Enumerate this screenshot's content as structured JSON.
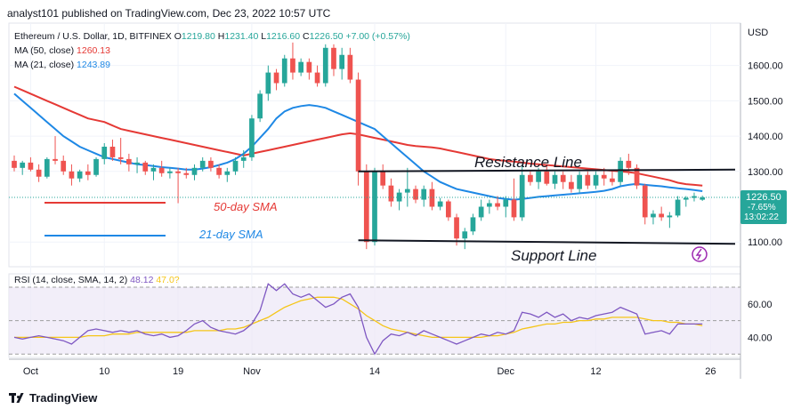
{
  "header": {
    "published_text": "analyst101 published on TradingView.com, Dec 23, 2022 10:57 UTC"
  },
  "legend": {
    "symbol": "Ethereum / U.S. Dollar, 1D, BITFINEX",
    "open_label": "O",
    "open": "1219.80",
    "high_label": "H",
    "high": "1231.40",
    "low_label": "L",
    "low": "1216.60",
    "close_label": "C",
    "close": "1226.50",
    "change": "+7.00 (+0.57%)",
    "ma50_label": "MA (50, close)",
    "ma50_value": "1260.13",
    "ma21_label": "MA (21, close)",
    "ma21_value": "1243.89"
  },
  "price_badge": {
    "price": "1226.50",
    "change": "-7.65%",
    "countdown": "13:02:22"
  },
  "annotations": {
    "resistance": "Resistance Line",
    "support": "Support Line",
    "sma50": "50-day SMA",
    "sma21": "21-day SMA"
  },
  "rsi_legend": {
    "label": "RSI (14, close, SMA, 14, 2)",
    "value": "48.12",
    "sma_value": "47.0?"
  },
  "footer": {
    "brand": "TradingView"
  },
  "currency": "USD",
  "colors": {
    "up": "#26a69a",
    "down": "#ef5350",
    "ma50": "#e53935",
    "ma21": "#1e88e5",
    "rsi": "#7e57c2",
    "rsi_ma": "#f5c518",
    "badge": "#26a69a"
  },
  "chart_data": [
    {
      "type": "candlestick",
      "title": "Ethereum / U.S. Dollar, 1D, BITFINEX",
      "x_ticks": [
        "Oct",
        "10",
        "19",
        "Nov",
        "14",
        "Dec",
        "12",
        "26"
      ],
      "x_tick_index": [
        2,
        11,
        20,
        29,
        44,
        60,
        71,
        85
      ],
      "y_ticks": [
        "1600.00",
        "1500.00",
        "1400.00",
        "1300.00",
        "1100.00"
      ],
      "y_tick_values": [
        1600,
        1500,
        1400,
        1300,
        1100
      ],
      "ylim": [
        1030,
        1720
      ],
      "xlim": [
        0,
        88
      ],
      "candles": [
        [
          1330,
          1345,
          1300,
          1310
        ],
        [
          1310,
          1330,
          1290,
          1325
        ],
        [
          1325,
          1340,
          1300,
          1305
        ],
        [
          1305,
          1320,
          1270,
          1285
        ],
        [
          1285,
          1340,
          1280,
          1335
        ],
        [
          1335,
          1400,
          1320,
          1330
        ],
        [
          1330,
          1345,
          1290,
          1300
        ],
        [
          1300,
          1320,
          1260,
          1280
        ],
        [
          1280,
          1305,
          1270,
          1300
        ],
        [
          1300,
          1320,
          1275,
          1290
        ],
        [
          1290,
          1340,
          1285,
          1335
        ],
        [
          1335,
          1380,
          1320,
          1370
        ],
        [
          1370,
          1390,
          1330,
          1340
        ],
        [
          1340,
          1395,
          1320,
          1335
        ],
        [
          1335,
          1350,
          1300,
          1320
        ],
        [
          1320,
          1340,
          1295,
          1325
        ],
        [
          1325,
          1330,
          1290,
          1300
        ],
        [
          1300,
          1320,
          1275,
          1310
        ],
        [
          1310,
          1330,
          1285,
          1295
        ],
        [
          1295,
          1310,
          1280,
          1300
        ],
        [
          1300,
          1310,
          1210,
          1295
        ],
        [
          1295,
          1310,
          1280,
          1290
        ],
        [
          1290,
          1320,
          1275,
          1310
        ],
        [
          1310,
          1340,
          1300,
          1330
        ],
        [
          1330,
          1340,
          1300,
          1310
        ],
        [
          1310,
          1320,
          1280,
          1290
        ],
        [
          1290,
          1310,
          1270,
          1300
        ],
        [
          1300,
          1340,
          1290,
          1330
        ],
        [
          1330,
          1360,
          1310,
          1340
        ],
        [
          1340,
          1460,
          1330,
          1450
        ],
        [
          1450,
          1530,
          1440,
          1520
        ],
        [
          1520,
          1600,
          1500,
          1580
        ],
        [
          1580,
          1590,
          1530,
          1550
        ],
        [
          1550,
          1630,
          1540,
          1620
        ],
        [
          1620,
          1665,
          1560,
          1580
        ],
        [
          1580,
          1620,
          1570,
          1610
        ],
        [
          1610,
          1620,
          1560,
          1580
        ],
        [
          1580,
          1600,
          1540,
          1550
        ],
        [
          1550,
          1660,
          1540,
          1650
        ],
        [
          1650,
          1660,
          1570,
          1590
        ],
        [
          1590,
          1650,
          1560,
          1630
        ],
        [
          1630,
          1650,
          1550,
          1560
        ],
        [
          1560,
          1580,
          1260,
          1300
        ],
        [
          1300,
          1320,
          1080,
          1100
        ],
        [
          1100,
          1310,
          1090,
          1300
        ],
        [
          1300,
          1320,
          1250,
          1260
        ],
        [
          1260,
          1280,
          1200,
          1215
        ],
        [
          1215,
          1250,
          1190,
          1240
        ],
        [
          1240,
          1310,
          1200,
          1250
        ],
        [
          1250,
          1260,
          1210,
          1220
        ],
        [
          1220,
          1260,
          1200,
          1250
        ],
        [
          1250,
          1270,
          1190,
          1200
        ],
        [
          1200,
          1225,
          1190,
          1215
        ],
        [
          1215,
          1220,
          1160,
          1170
        ],
        [
          1170,
          1180,
          1090,
          1110
        ],
        [
          1110,
          1140,
          1080,
          1130
        ],
        [
          1130,
          1180,
          1120,
          1170
        ],
        [
          1170,
          1220,
          1160,
          1200
        ],
        [
          1200,
          1220,
          1180,
          1210
        ],
        [
          1210,
          1230,
          1190,
          1200
        ],
        [
          1200,
          1230,
          1170,
          1220
        ],
        [
          1220,
          1280,
          1160,
          1170
        ],
        [
          1170,
          1320,
          1160,
          1290
        ],
        [
          1290,
          1300,
          1260,
          1270
        ],
        [
          1270,
          1310,
          1250,
          1300
        ],
        [
          1300,
          1320,
          1260,
          1265
        ],
        [
          1265,
          1300,
          1250,
          1290
        ],
        [
          1290,
          1300,
          1250,
          1270
        ],
        [
          1270,
          1290,
          1240,
          1250
        ],
        [
          1250,
          1300,
          1240,
          1290
        ],
        [
          1290,
          1300,
          1250,
          1260
        ],
        [
          1260,
          1300,
          1250,
          1290
        ],
        [
          1290,
          1310,
          1260,
          1280
        ],
        [
          1280,
          1300,
          1260,
          1270
        ],
        [
          1270,
          1340,
          1260,
          1330
        ],
        [
          1330,
          1350,
          1290,
          1310
        ],
        [
          1310,
          1320,
          1250,
          1260
        ],
        [
          1260,
          1265,
          1150,
          1170
        ],
        [
          1170,
          1190,
          1150,
          1180
        ],
        [
          1180,
          1200,
          1160,
          1170
        ],
        [
          1170,
          1185,
          1140,
          1175
        ],
        [
          1175,
          1230,
          1170,
          1220
        ],
        [
          1220,
          1230,
          1200,
          1225
        ],
        [
          1225,
          1240,
          1215,
          1230
        ],
        [
          1219.8,
          1231.4,
          1216.6,
          1226.5
        ]
      ],
      "ma50": [
        1540,
        1530,
        1520,
        1510,
        1500,
        1490,
        1480,
        1470,
        1460,
        1450,
        1445,
        1440,
        1430,
        1420,
        1415,
        1410,
        1405,
        1400,
        1395,
        1390,
        1385,
        1380,
        1375,
        1370,
        1365,
        1360,
        1355,
        1350,
        1345,
        1350,
        1355,
        1360,
        1365,
        1370,
        1375,
        1380,
        1385,
        1390,
        1395,
        1400,
        1405,
        1408,
        1405,
        1400,
        1395,
        1390,
        1385,
        1380,
        1375,
        1372,
        1370,
        1368,
        1365,
        1360,
        1355,
        1350,
        1345,
        1340,
        1335,
        1332,
        1330,
        1328,
        1325,
        1322,
        1320,
        1318,
        1316,
        1314,
        1312,
        1310,
        1308,
        1306,
        1304,
        1302,
        1300,
        1298,
        1295,
        1290,
        1285,
        1280,
        1275,
        1268,
        1264,
        1262,
        1260
      ],
      "ma21": [
        1520,
        1500,
        1480,
        1460,
        1440,
        1420,
        1400,
        1385,
        1370,
        1360,
        1350,
        1340,
        1335,
        1330,
        1325,
        1320,
        1318,
        1315,
        1312,
        1310,
        1308,
        1305,
        1305,
        1308,
        1312,
        1318,
        1325,
        1335,
        1350,
        1370,
        1395,
        1420,
        1450,
        1470,
        1480,
        1485,
        1488,
        1485,
        1480,
        1470,
        1460,
        1450,
        1440,
        1430,
        1420,
        1400,
        1380,
        1360,
        1340,
        1320,
        1300,
        1285,
        1270,
        1260,
        1250,
        1245,
        1240,
        1235,
        1230,
        1225,
        1222,
        1220,
        1222,
        1225,
        1228,
        1230,
        1232,
        1234,
        1236,
        1238,
        1240,
        1242,
        1245,
        1250,
        1258,
        1262,
        1265,
        1262,
        1260,
        1258,
        1255,
        1252,
        1250,
        1247,
        1244
      ],
      "resistance_value": 1300,
      "support_value": 1100
    },
    {
      "type": "line",
      "title": "RSI (14, close, SMA, 14, 2)",
      "y_ticks": [
        "60.00",
        "40.00"
      ],
      "y_tick_values": [
        60,
        40
      ],
      "ylim": [
        28,
        78
      ],
      "rsi": [
        40,
        39,
        40,
        41,
        40,
        39,
        38,
        36,
        40,
        44,
        45,
        44,
        43,
        44,
        43,
        44,
        42,
        41,
        42,
        40,
        41,
        44,
        48,
        50,
        46,
        44,
        43,
        42,
        44,
        48,
        56,
        72,
        68,
        72,
        66,
        64,
        66,
        62,
        58,
        60,
        64,
        66,
        58,
        40,
        30,
        38,
        42,
        41,
        43,
        41,
        44,
        42,
        40,
        38,
        36,
        38,
        40,
        42,
        41,
        43,
        42,
        44,
        55,
        54,
        52,
        55,
        52,
        54,
        50,
        52,
        51,
        53,
        54,
        55,
        58,
        56,
        54,
        42,
        43,
        44,
        42,
        48,
        48,
        48,
        48
      ],
      "rsi_ma": [
        40,
        40,
        40,
        40,
        40,
        40,
        40,
        40,
        40,
        41,
        41,
        41,
        42,
        42,
        42,
        43,
        43,
        43,
        43,
        43,
        43,
        43,
        44,
        44,
        44,
        44,
        45,
        45,
        46,
        48,
        50,
        52,
        55,
        58,
        60,
        62,
        63,
        64,
        64,
        64,
        63,
        60,
        57,
        53,
        50,
        47,
        45,
        44,
        43,
        42,
        41,
        40,
        40,
        40,
        40,
        40,
        40,
        40,
        41,
        41,
        42,
        43,
        45,
        46,
        47,
        48,
        48,
        49,
        49,
        50,
        50,
        51,
        51,
        52,
        52,
        52,
        52,
        51,
        50,
        50,
        49,
        49,
        48,
        48,
        47
      ]
    }
  ]
}
